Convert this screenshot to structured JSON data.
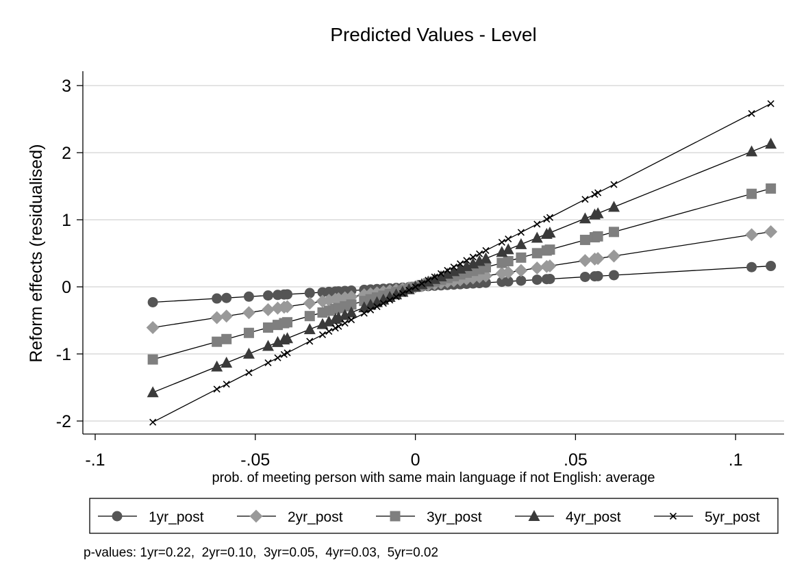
{
  "notes": "p-values: 1yr=0.22,  2yr=0.10,  3yr=0.05,  4yr=0.03,  5yr=0.02",
  "chart_data": {
    "type": "line",
    "title": "Predicted Values - Level",
    "xlabel": "prob. of meeting person with same main language if not English: average",
    "ylabel": "Reform effects (residualised)",
    "xlim": [
      -0.1,
      0.115
    ],
    "ylim": [
      -2.2,
      3.2
    ],
    "xticks": [
      -0.1,
      -0.05,
      0,
      0.05,
      0.1
    ],
    "xtick_labels": [
      "-.1",
      "-.05",
      "0",
      ".05",
      ".1"
    ],
    "yticks": [
      -2,
      -1,
      0,
      1,
      2,
      3
    ],
    "ytick_labels": [
      "-2",
      "-1",
      "0",
      "1",
      "2",
      "3"
    ],
    "grid": true,
    "legend_position": "bottom",
    "x": [
      -0.082,
      -0.062,
      -0.059,
      -0.052,
      -0.046,
      -0.043,
      -0.041,
      -0.04,
      -0.033,
      -0.029,
      -0.027,
      -0.025,
      -0.024,
      -0.022,
      -0.02,
      -0.016,
      -0.014,
      -0.012,
      -0.01,
      -0.008,
      -0.006,
      -0.004,
      -0.002,
      0,
      0.002,
      0.004,
      0.006,
      0.008,
      0.01,
      0.012,
      0.014,
      0.016,
      0.018,
      0.02,
      0.022,
      0.027,
      0.029,
      0.033,
      0.038,
      0.041,
      0.042,
      0.053,
      0.056,
      0.057,
      0.062,
      0.105,
      0.111
    ],
    "series": [
      {
        "name": "1yr_post",
        "marker": "circle",
        "color": "#555555",
        "slope": 2.8
      },
      {
        "name": "2yr_post",
        "marker": "diamond",
        "color": "#999999",
        "slope": 7.4
      },
      {
        "name": "3yr_post",
        "marker": "square",
        "color": "#7f7f7f",
        "slope": 13.2
      },
      {
        "name": "4yr_post",
        "marker": "triangle",
        "color": "#3a3a3a",
        "slope": 19.2
      },
      {
        "name": "5yr_post",
        "marker": "x",
        "color": "#000000",
        "slope": 24.6
      }
    ]
  }
}
